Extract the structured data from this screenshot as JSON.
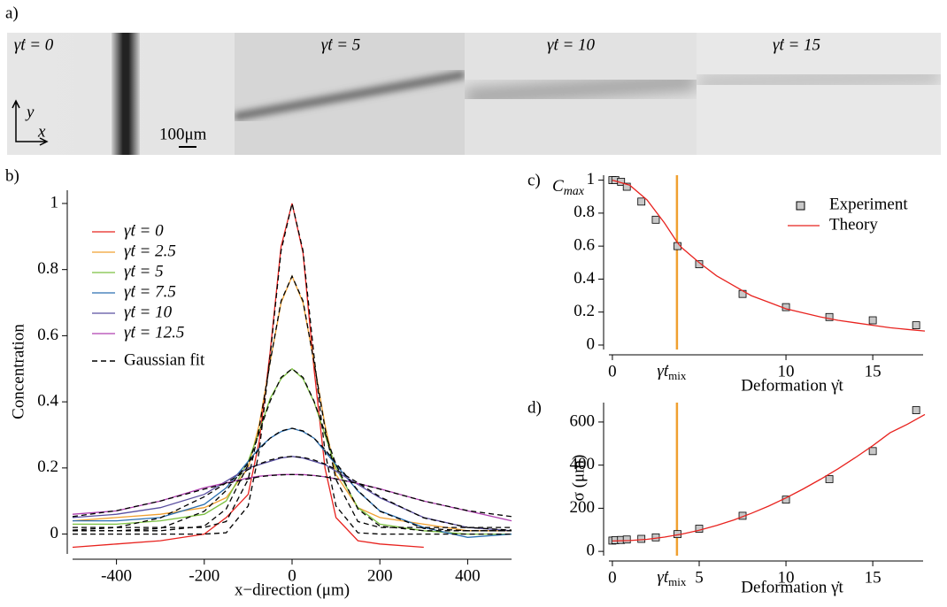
{
  "panel_a": {
    "label": "a)",
    "frames": [
      {
        "label": "γ̇t = 0"
      },
      {
        "label": "γ̇t = 5"
      },
      {
        "label": "γ̇t = 10"
      },
      {
        "label": "γ̇t = 15"
      }
    ],
    "scale_bar": "100μm",
    "axis_y": "y",
    "axis_x": "x"
  },
  "chart_data": [
    {
      "type": "line",
      "panel_label": "b)",
      "xlabel": "x−direction (μm)",
      "ylabel": "Concentration",
      "x": [
        -500,
        -400,
        -300,
        -200,
        -150,
        -100,
        -75,
        -50,
        -25,
        0,
        25,
        50,
        75,
        100,
        150,
        200,
        300,
        400,
        500
      ],
      "xlim": [
        -500,
        500
      ],
      "xticks": [
        -400,
        -200,
        0,
        200,
        400
      ],
      "ylim": [
        -0.06,
        1.04
      ],
      "yticks": [
        0,
        0.2,
        0.4,
        0.6,
        0.8,
        1
      ],
      "series": [
        {
          "name": "γ̇t = 0",
          "color": "#e8231f",
          "values": [
            -0.04,
            -0.03,
            -0.02,
            0.0,
            0.05,
            0.12,
            0.28,
            0.55,
            0.87,
            1.0,
            0.85,
            0.5,
            0.2,
            0.05,
            -0.02,
            -0.03,
            -0.04,
            null,
            null
          ]
        },
        {
          "name": "γ̇t = 2.5",
          "color": "#f0a030",
          "values": [
            0.04,
            0.05,
            0.06,
            0.08,
            0.11,
            0.2,
            0.33,
            0.52,
            0.7,
            0.78,
            0.7,
            0.52,
            0.33,
            0.18,
            0.08,
            0.05,
            0.03,
            0.01,
            0.01
          ]
        },
        {
          "name": "γ̇t = 5",
          "color": "#7cc040",
          "values": [
            0.03,
            0.03,
            0.04,
            0.06,
            0.1,
            0.22,
            0.31,
            0.41,
            0.47,
            0.5,
            0.47,
            0.4,
            0.3,
            0.2,
            0.08,
            0.03,
            0.01,
            0.0,
            0.0
          ]
        },
        {
          "name": "γ̇t = 7.5",
          "color": "#2a6fb0",
          "values": [
            0.04,
            0.04,
            0.05,
            0.09,
            0.14,
            0.22,
            0.26,
            0.29,
            0.31,
            0.32,
            0.31,
            0.29,
            0.25,
            0.21,
            0.13,
            0.07,
            0.02,
            -0.01,
            0.0
          ]
        },
        {
          "name": "γ̇t = 10",
          "color": "#5a4fa0",
          "values": [
            0.05,
            0.06,
            0.08,
            0.12,
            0.16,
            0.2,
            0.21,
            0.22,
            0.23,
            0.235,
            0.23,
            0.22,
            0.21,
            0.19,
            0.15,
            0.11,
            0.05,
            0.02,
            0.01
          ]
        },
        {
          "name": "γ̇t = 12.5",
          "color": "#b040b0",
          "values": [
            0.06,
            0.07,
            0.1,
            0.14,
            0.155,
            0.17,
            0.175,
            0.178,
            0.18,
            0.18,
            0.18,
            0.177,
            0.173,
            0.167,
            0.153,
            0.137,
            0.1,
            0.07,
            0.04
          ]
        }
      ],
      "fit_name": "Gaussian fit",
      "fit_color": "#000000",
      "fits": [
        {
          "values": [
            0,
            0,
            0,
            0,
            0.004,
            0.085,
            0.249,
            0.539,
            0.857,
            1.0,
            0.857,
            0.539,
            0.249,
            0.085,
            0.004,
            0,
            0,
            0,
            0
          ]
        },
        {
          "values": [
            0.02,
            0.02,
            0.02,
            0.02,
            0.038,
            0.165,
            0.32,
            0.52,
            0.705,
            0.78,
            0.705,
            0.52,
            0.32,
            0.165,
            0.038,
            0.02,
            0.02,
            0.02,
            0.02
          ]
        },
        {
          "values": [
            0.01,
            0.01,
            0.01,
            0.024,
            0.076,
            0.21,
            0.307,
            0.402,
            0.474,
            0.5,
            0.474,
            0.402,
            0.307,
            0.21,
            0.076,
            0.024,
            0.01,
            0.01,
            0.01
          ]
        },
        {
          "values": [
            0.01,
            0.01,
            0.017,
            0.069,
            0.132,
            0.215,
            0.256,
            0.29,
            0.312,
            0.32,
            0.312,
            0.29,
            0.256,
            0.215,
            0.132,
            0.069,
            0.017,
            0.01,
            0.01
          ]
        },
        {
          "values": [
            0.012,
            0.02,
            0.049,
            0.113,
            0.155,
            0.195,
            0.212,
            0.224,
            0.232,
            0.235,
            0.232,
            0.224,
            0.212,
            0.195,
            0.155,
            0.113,
            0.049,
            0.02,
            0.012
          ]
        },
        {
          "values": [
            0.053,
            0.071,
            0.1,
            0.136,
            0.153,
            0.167,
            0.173,
            0.177,
            0.179,
            0.18,
            0.179,
            0.177,
            0.173,
            0.167,
            0.153,
            0.136,
            0.1,
            0.071,
            0.053
          ]
        }
      ]
    },
    {
      "type": "line",
      "panel_label": "c)",
      "ylabel": "C",
      "ylabel_sub": "max",
      "xlabel": "Deformation γ̇t",
      "xlim": [
        -0.2,
        17.9
      ],
      "xticks": [
        0,
        10,
        15
      ],
      "ylim": [
        -0.027,
        1.03
      ],
      "yticks": [
        0,
        0.2,
        0.4,
        0.6,
        0.8,
        1
      ],
      "mix": {
        "value": 3.72,
        "label": "γ̇t",
        "sub": "mix",
        "color": "#f0a030"
      },
      "series": [
        {
          "name": "Experiment",
          "marker": "square",
          "color": "#c8c8c8",
          "x": [
            0,
            0.17,
            0.5,
            0.83,
            1.67,
            2.5,
            3.75,
            5,
            7.5,
            10,
            12.5,
            15,
            17.5
          ],
          "values": [
            1,
            1,
            0.99,
            0.96,
            0.87,
            0.76,
            0.6,
            0.49,
            0.31,
            0.23,
            0.17,
            0.15,
            0.12
          ]
        },
        {
          "name": "Theory",
          "color": "#e8231f",
          "x": [
            0,
            1,
            2,
            3,
            3.75,
            4,
            5,
            6,
            7,
            8,
            9,
            10,
            11,
            12,
            13,
            14,
            15,
            16,
            17,
            18
          ],
          "values": [
            1,
            0.97,
            0.88,
            0.74,
            0.62,
            0.59,
            0.5,
            0.42,
            0.36,
            0.3,
            0.26,
            0.22,
            0.195,
            0.17,
            0.15,
            0.135,
            0.12,
            0.105,
            0.095,
            0.085
          ]
        }
      ]
    },
    {
      "type": "line",
      "panel_label": "d)",
      "ylabel": "σ (μm)",
      "xlabel": "Deformation γ̇t",
      "xlim": [
        -0.2,
        17.9
      ],
      "xticks": [
        0,
        5,
        10,
        15
      ],
      "ylim": [
        -20,
        690
      ],
      "yticks": [
        0,
        200,
        400,
        600
      ],
      "mix": {
        "value": 3.72,
        "label": "γ̇t",
        "sub": "mix",
        "color": "#f0a030"
      },
      "series": [
        {
          "name": "Experiment",
          "marker": "square",
          "color": "#c8c8c8",
          "x": [
            0,
            0.17,
            0.5,
            0.83,
            1.67,
            2.5,
            3.75,
            5,
            7.5,
            10,
            12.5,
            15,
            17.5
          ],
          "values": [
            50,
            52,
            53,
            55,
            58,
            65,
            80,
            105,
            165,
            240,
            335,
            465,
            655
          ]
        },
        {
          "name": "Theory",
          "color": "#e8231f",
          "x": [
            0,
            1,
            2,
            3,
            4,
            5,
            6,
            7,
            8,
            9,
            10,
            11,
            12,
            13,
            14,
            15,
            16,
            17,
            18
          ],
          "values": [
            48,
            50,
            56,
            66,
            80,
            98,
            120,
            146,
            176,
            210,
            248,
            290,
            335,
            383,
            435,
            490,
            550,
            590,
            635
          ]
        }
      ]
    }
  ]
}
